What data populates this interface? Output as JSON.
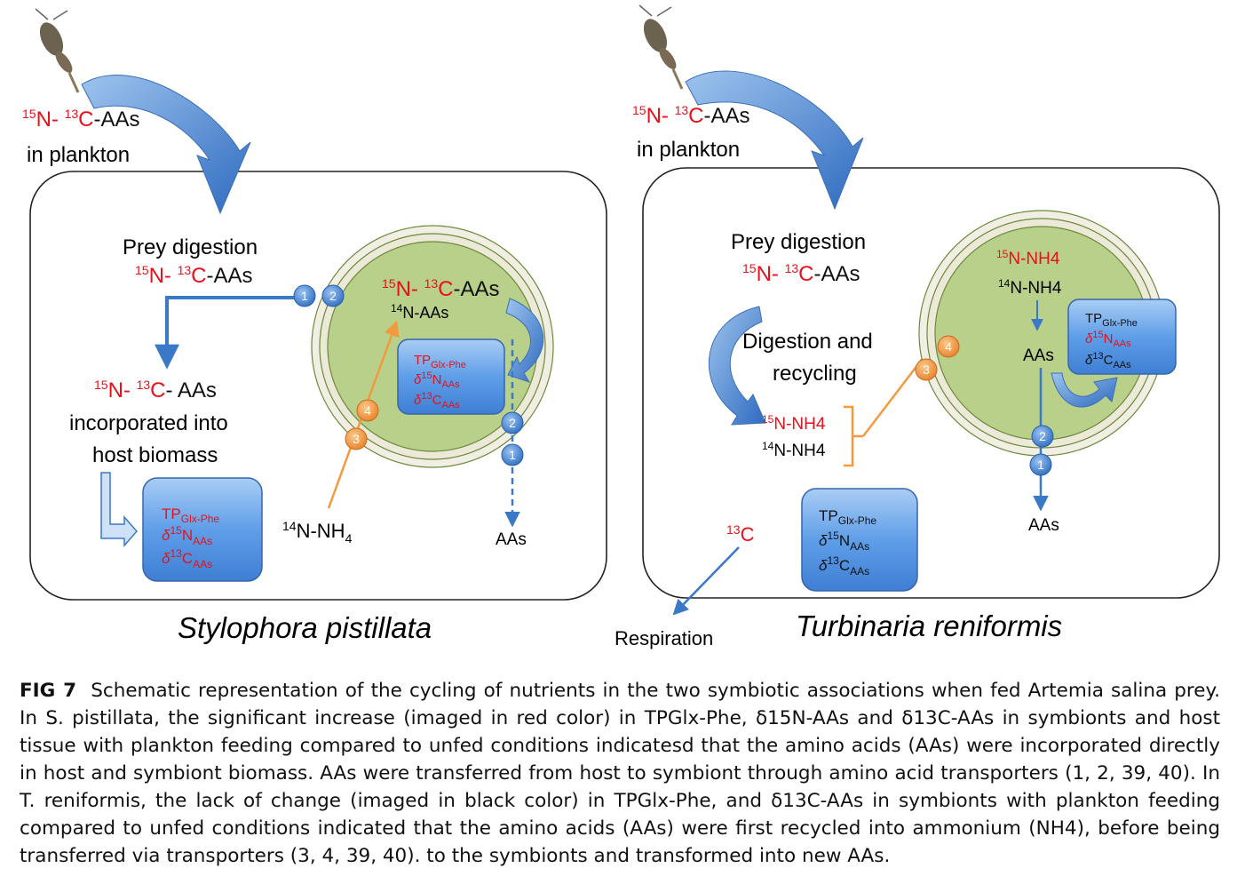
{
  "left_panel": {
    "species": "Stylophora pistillata",
    "plankton_label_iso": "15N- 13C-AAs",
    "plankton_label_line2": "in plankton",
    "prey_digestion": "Prey digestion",
    "prey_digestion_iso": "15N- 13C-AAs",
    "incorporated_iso": "15N- 13C- AAs",
    "incorporated_line1": "incorporated into",
    "incorporated_line2": "host biomass",
    "symbiont_iso": "15N- 13C-AAs",
    "symbiont_14n": "14N-AAs",
    "nh4_label": "14N-NH4",
    "aas_out": "AAs",
    "host_box": [
      "TPGlx-Phe",
      "δ15NAAs",
      "δ13CAAs"
    ],
    "symbiont_box": [
      "TPGlx-Phe",
      "δ15NAAs",
      "δ13CAAs"
    ],
    "transporters": [
      "1",
      "2",
      "3",
      "4",
      "2",
      "1"
    ]
  },
  "right_panel": {
    "species": "Turbinaria reniformis",
    "plankton_label_iso": "15N- 13C-AAs",
    "plankton_label_line2": "in plankton",
    "prey_digestion": "Prey digestion",
    "prey_digestion_iso": "15N- 13C-AAs",
    "recycling_line1": "Digestion and",
    "recycling_line2": "recycling",
    "nh4_15": "15N-NH4",
    "nh4_14": "14N-NH4",
    "sym_nh4_15": "15N-NH4",
    "sym_nh4_14": "14N-NH4",
    "sym_aas": "AAs",
    "aas_out": "AAs",
    "c13": "13C",
    "respiration": "Respiration",
    "host_box": [
      "TPGlx-Phe",
      "δ15NAAs",
      "δ13CAAs"
    ],
    "symbiont_box": [
      "TPGlx-Phe",
      "δ15NAAs",
      "δ13CAAs"
    ],
    "transporters": [
      "3",
      "4",
      "2",
      "1"
    ]
  },
  "caption": {
    "label": "FIG 7",
    "text": "Schematic representation of the cycling of nutrients in the two symbiotic associations when fed Artemia salina prey. In S. pistillata, the significant increase (imaged in red color) in TPGlx-Phe, δ15N-AAs and δ13C-AAs in symbionts and host tissue with plankton feeding compared to unfed conditions indicatesd that the amino acids (AAs) were incorporated directly in host and symbiont biomass. AAs were transferred from host to symbiont through amino acid transporters (1, 2, 39, 40). In T. reniformis, the lack of change (imaged in black color) in TPGlx-Phe, and δ13C-AAs in symbionts with plankton feeding compared to unfed conditions indicated that the amino acids (AAs) were first recycled into ammonium (NH4), before being transferred via transporters (3, 4, 39, 40). to the symbionts and transformed into new AAs."
  },
  "colors": {
    "isotope": "#e8101a",
    "arrow": "#3a78c8",
    "transfer": "#f19a3e",
    "symbiont": "#b9d08a"
  }
}
